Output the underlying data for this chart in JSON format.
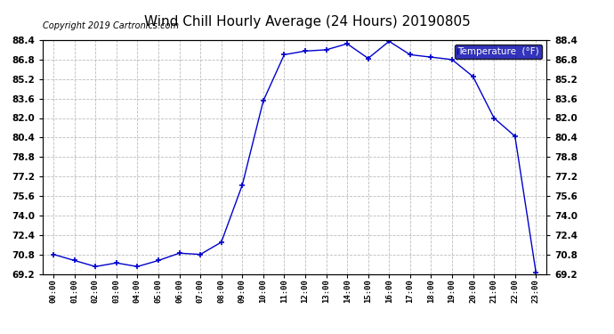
{
  "title": "Wind Chill Hourly Average (24 Hours) 20190805",
  "copyright_text": "Copyright 2019 Cartronics.com",
  "legend_label": "Temperature  (°F)",
  "hours": [
    0,
    1,
    2,
    3,
    4,
    5,
    6,
    7,
    8,
    9,
    10,
    11,
    12,
    13,
    14,
    15,
    16,
    17,
    18,
    19,
    20,
    21,
    22,
    23
  ],
  "x_labels": [
    "00:00",
    "01:00",
    "02:00",
    "03:00",
    "04:00",
    "05:00",
    "06:00",
    "07:00",
    "08:00",
    "09:00",
    "10:00",
    "11:00",
    "12:00",
    "13:00",
    "14:00",
    "15:00",
    "16:00",
    "17:00",
    "18:00",
    "19:00",
    "20:00",
    "21:00",
    "22:00",
    "23:00"
  ],
  "values": [
    70.8,
    70.3,
    69.8,
    70.1,
    69.8,
    70.3,
    70.9,
    70.8,
    71.8,
    76.5,
    83.4,
    87.2,
    87.5,
    87.6,
    88.1,
    86.9,
    88.3,
    87.2,
    87.0,
    86.8,
    85.4,
    82.0,
    80.5,
    69.3
  ],
  "ylim_min": 69.2,
  "ylim_max": 88.4,
  "yticks": [
    69.2,
    70.8,
    72.4,
    74.0,
    75.6,
    77.2,
    78.8,
    80.4,
    82.0,
    83.6,
    85.2,
    86.8,
    88.4
  ],
  "line_color": "#0000cc",
  "marker": "+",
  "marker_color": "#0000cc",
  "bg_color": "#ffffff",
  "grid_color": "#bbbbbb",
  "title_fontsize": 11,
  "copyright_fontsize": 7,
  "legend_bg": "#0000aa",
  "legend_text_color": "#ffffff",
  "tick_fontsize": 7.5,
  "xtick_fontsize": 6.5
}
